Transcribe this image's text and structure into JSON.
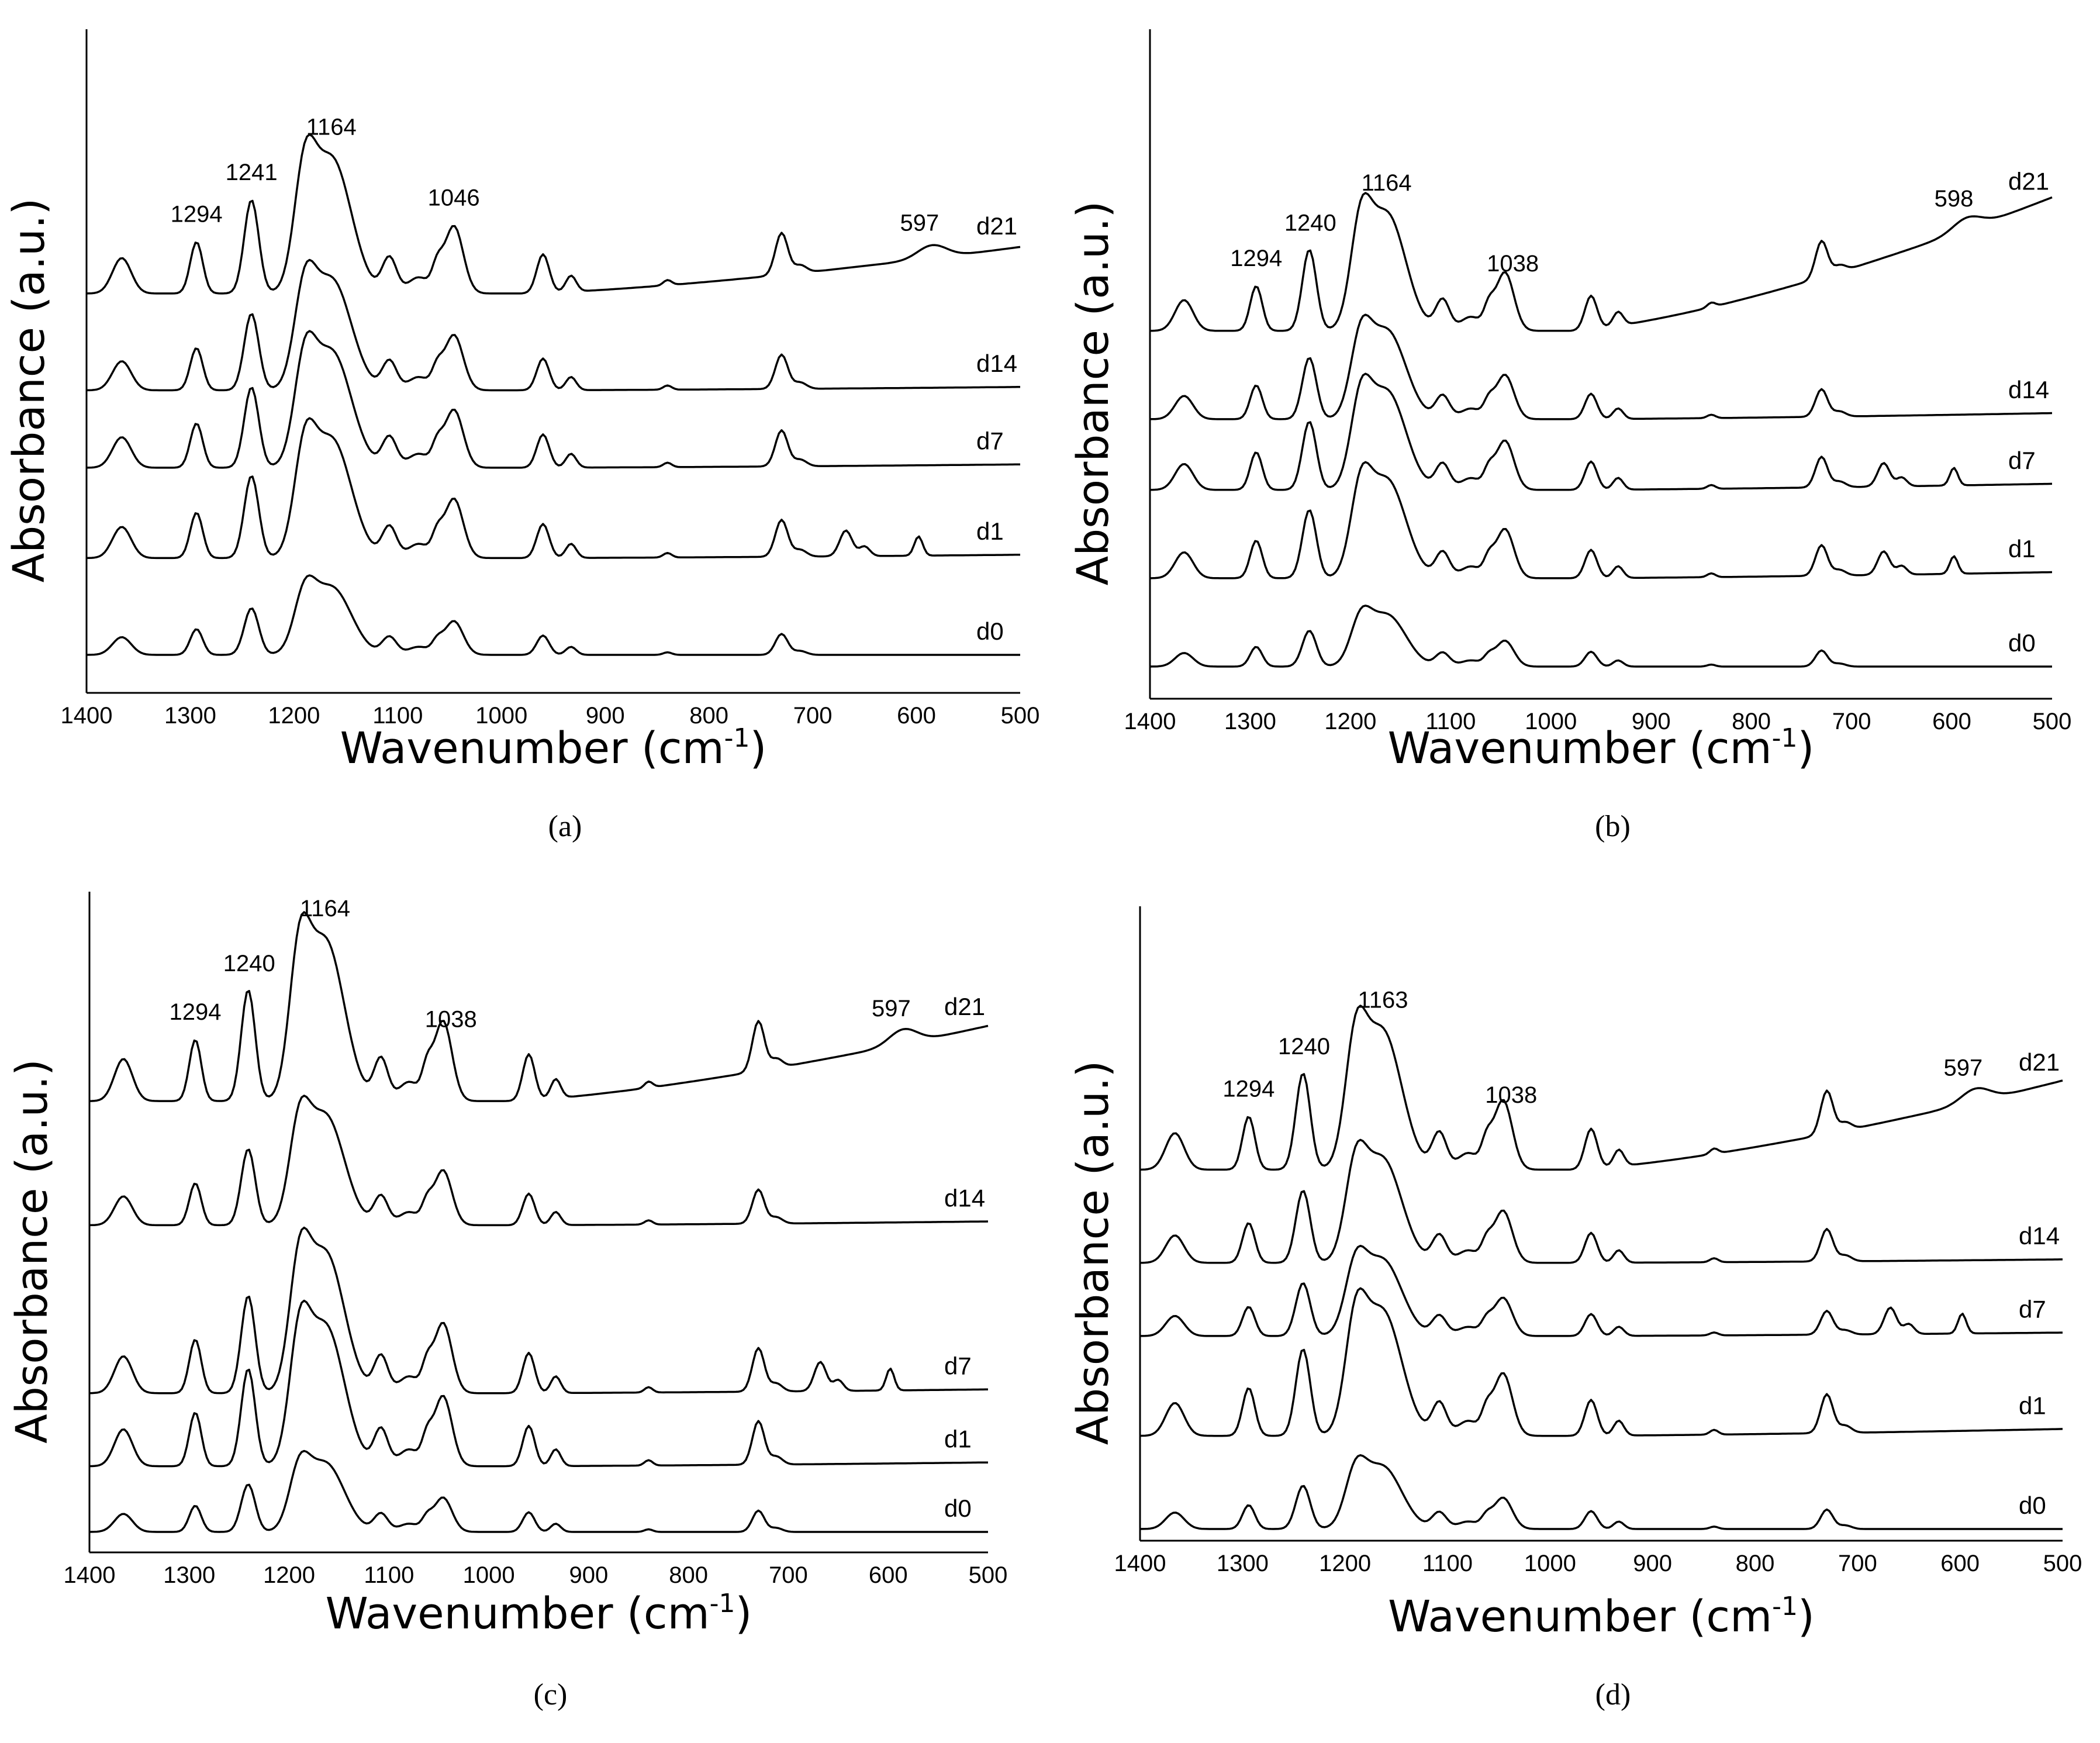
{
  "figure": {
    "x_axis_text": "Wavenumber (cm",
    "x_axis_sup": "-1",
    "x_axis_close": ")",
    "y_axis_text": "Absorbance (a.u.)"
  },
  "chart_data": [
    {
      "type": "line",
      "panel": "a",
      "caption": "(a)",
      "xlabel": "Wavenumber (cm-1)",
      "ylabel": "Absorbance (a.u.)",
      "xlim": [
        1400,
        500
      ],
      "x_ticks": [
        1400,
        1300,
        1200,
        1100,
        1000,
        900,
        800,
        700,
        600,
        500
      ],
      "series": [
        {
          "name": "d21",
          "offset": 5.6,
          "scale": 1.0,
          "rise": 0.7,
          "m597": true,
          "m670": false
        },
        {
          "name": "d14",
          "offset": 4.1,
          "scale": 0.82,
          "rise": 0.05,
          "m597": false,
          "m670": false
        },
        {
          "name": "d7",
          "offset": 2.9,
          "scale": 0.86,
          "rise": 0.05,
          "m597": false,
          "m670": false
        },
        {
          "name": "d1",
          "offset": 1.5,
          "scale": 0.88,
          "rise": 0.05,
          "m597": false,
          "m670": true
        },
        {
          "name": "d0",
          "offset": 0.0,
          "scale": 0.5,
          "rise": 0.0,
          "m597": false,
          "m670": false
        }
      ],
      "annotations": [
        {
          "text": "1294",
          "x": 1294
        },
        {
          "text": "1241",
          "x": 1241
        },
        {
          "text": "1164",
          "x": 1164
        },
        {
          "text": "1046",
          "x": 1046
        },
        {
          "text": "597",
          "x": 597
        }
      ]
    },
    {
      "type": "line",
      "panel": "b",
      "caption": "(b)",
      "xlabel": "Wavenumber (cm-1)",
      "ylabel": "Absorbance (a.u.)",
      "xlim": [
        1400,
        500
      ],
      "x_ticks": [
        1400,
        1300,
        1200,
        1100,
        1000,
        900,
        800,
        700,
        600,
        500
      ],
      "series": [
        {
          "name": "d21",
          "offset": 5.7,
          "scale": 0.95,
          "rise": 2.2,
          "m597": true,
          "m670": false
        },
        {
          "name": "d14",
          "offset": 4.2,
          "scale": 0.72,
          "rise": 0.1,
          "m597": false,
          "m670": false
        },
        {
          "name": "d7",
          "offset": 3.0,
          "scale": 0.8,
          "rise": 0.1,
          "m597": false,
          "m670": true
        },
        {
          "name": "d1",
          "offset": 1.5,
          "scale": 0.8,
          "rise": 0.1,
          "m597": false,
          "m670": true
        },
        {
          "name": "d0",
          "offset": 0.0,
          "scale": 0.42,
          "rise": 0.0,
          "m597": false,
          "m670": false
        }
      ],
      "annotations": [
        {
          "text": "1294",
          "x": 1294
        },
        {
          "text": "1240",
          "x": 1240
        },
        {
          "text": "1164",
          "x": 1164
        },
        {
          "text": "1038",
          "x": 1038
        },
        {
          "text": "598",
          "x": 598
        }
      ]
    },
    {
      "type": "line",
      "panel": "c",
      "caption": "(c)",
      "xlabel": "Wavenumber (cm-1)",
      "ylabel": "Absorbance (a.u.)",
      "xlim": [
        1400,
        500
      ],
      "x_ticks": [
        1400,
        1300,
        1200,
        1100,
        1000,
        900,
        800,
        700,
        600,
        500
      ],
      "series": [
        {
          "name": "d21",
          "offset": 5.9,
          "scale": 1.05,
          "rise": 1.0,
          "m597": true,
          "m670": false
        },
        {
          "name": "d14",
          "offset": 4.2,
          "scale": 0.72,
          "rise": 0.05,
          "m597": false,
          "m670": false
        },
        {
          "name": "d7",
          "offset": 1.9,
          "scale": 0.92,
          "rise": 0.05,
          "m597": false,
          "m670": true
        },
        {
          "name": "d1",
          "offset": 0.9,
          "scale": 0.92,
          "rise": 0.05,
          "m597": false,
          "m670": false
        },
        {
          "name": "d0",
          "offset": 0.0,
          "scale": 0.45,
          "rise": 0.0,
          "m597": false,
          "m670": false
        }
      ],
      "annotations": [
        {
          "text": "1294",
          "x": 1294
        },
        {
          "text": "1240",
          "x": 1240
        },
        {
          "text": "1164",
          "x": 1164
        },
        {
          "text": "1038",
          "x": 1038
        },
        {
          "text": "597",
          "x": 597
        }
      ]
    },
    {
      "type": "line",
      "panel": "d",
      "caption": "(d)",
      "xlabel": "Wavenumber (cm-1)",
      "ylabel": "Absorbance (a.u.)",
      "xlim": [
        1400,
        500
      ],
      "x_ticks": [
        1400,
        1300,
        1200,
        1100,
        1000,
        900,
        800,
        700,
        600,
        500
      ],
      "series": [
        {
          "name": "d21",
          "offset": 5.4,
          "scale": 1.0,
          "rise": 1.3,
          "m597": true,
          "m670": false
        },
        {
          "name": "d14",
          "offset": 4.0,
          "scale": 0.75,
          "rise": 0.05,
          "m597": false,
          "m670": false
        },
        {
          "name": "d7",
          "offset": 2.9,
          "scale": 0.55,
          "rise": 0.05,
          "m597": false,
          "m670": true
        },
        {
          "name": "d1",
          "offset": 1.4,
          "scale": 0.9,
          "rise": 0.1,
          "m597": false,
          "m670": false
        },
        {
          "name": "d0",
          "offset": 0.0,
          "scale": 0.45,
          "rise": 0.0,
          "m597": false,
          "m670": false
        }
      ],
      "annotations": [
        {
          "text": "1294",
          "x": 1294
        },
        {
          "text": "1240",
          "x": 1240
        },
        {
          "text": "1163",
          "x": 1163
        },
        {
          "text": "1038",
          "x": 1038
        },
        {
          "text": "597",
          "x": 597
        }
      ]
    }
  ]
}
